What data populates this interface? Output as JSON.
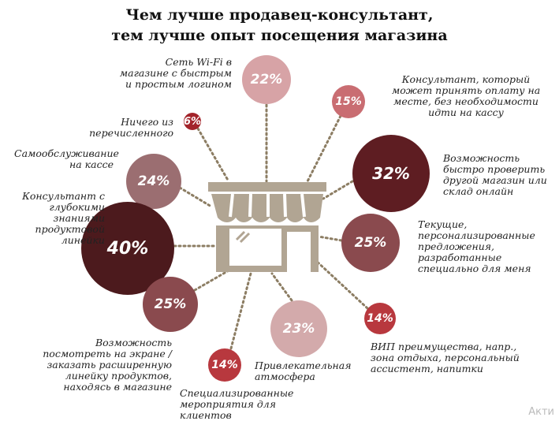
{
  "title": {
    "line1": "Чем лучше продавец-консультант,",
    "line2": "тем лучше опыт посещения магазина"
  },
  "items": [
    {
      "id": "wifi",
      "value": "22%",
      "color": "#d7a3a6",
      "label_lines": [
        "Сеть Wi-Fi в",
        "магазине с быстрым",
        "и простым логином"
      ]
    },
    {
      "id": "nothing",
      "value": "6%",
      "color": "#a3242b",
      "label_lines": [
        "Ничего из",
        "перечисленного"
      ]
    },
    {
      "id": "pay",
      "value": "15%",
      "color": "#c96d72",
      "label_lines": [
        "Консультант, который",
        "может принять оплату на",
        "месте, без необходимости",
        "идти на кассу"
      ]
    },
    {
      "id": "self",
      "value": "24%",
      "color": "#9b6e71",
      "label_lines": [
        "Самообслуживание",
        "на кассе"
      ]
    },
    {
      "id": "stock",
      "value": "32%",
      "color": "#5e1d22",
      "label_lines": [
        "Возможность",
        "быстро проверить",
        "другой магазин или",
        "склад онлайн"
      ]
    },
    {
      "id": "expert",
      "value": "40%",
      "color": "#4c1a1d",
      "label_lines": [
        "Консультант с",
        "глубокими",
        "знаниями",
        "продуктовой",
        "линейки"
      ]
    },
    {
      "id": "offers",
      "value": "25%",
      "color": "#8a4a4e",
      "label_lines": [
        "Текущие,",
        "персонализированные",
        "предложения,",
        "разработанные",
        "специально для меня"
      ]
    },
    {
      "id": "screen",
      "value": "25%",
      "color": "#8a4a4e",
      "label_lines": [
        "Возможность",
        "посмотреть на экране /",
        "заказать расширенную",
        "линейку продуктов,",
        "находясь в магазине"
      ]
    },
    {
      "id": "vip",
      "value": "14%",
      "color": "#b8383e",
      "label_lines": [
        "ВИП преимущества, напр.,",
        "зона отдыха, персональный",
        "ассистент, напитки"
      ]
    },
    {
      "id": "atmosphere",
      "value": "23%",
      "color": "#d3aaab",
      "label_lines": [
        "Привлекательная",
        "атмосфера"
      ]
    },
    {
      "id": "events",
      "value": "14%",
      "color": "#b8383e",
      "label_lines": [
        "Специализированные",
        "мероприятия для",
        "клиентов"
      ]
    }
  ],
  "watermark": "Акти",
  "store_icon_color": "#b1a593"
}
